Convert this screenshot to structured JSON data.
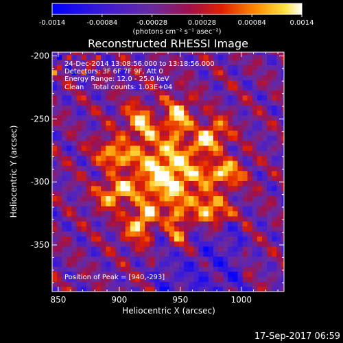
{
  "chart_data": {
    "type": "heatmap",
    "title": "Reconstructed RHESSI Image",
    "xlabel": "Heliocentric X (arcsec)",
    "ylabel": "Heliocentric Y (arcsec)",
    "xlim": [
      845,
      1035
    ],
    "ylim": [
      -387,
      -197
    ],
    "x_ticks": [
      850,
      900,
      950,
      1000
    ],
    "x_tick_labels": [
      "850",
      "900",
      "950",
      "1000"
    ],
    "y_ticks": [
      -200,
      -250,
      -300,
      -350
    ],
    "y_tick_labels": [
      "-200",
      "-250",
      "-300",
      "-350"
    ],
    "colorbar": {
      "min": -0.0014,
      "max": 0.0014,
      "ticks": [
        -0.0014,
        -0.00084,
        -0.00028,
        0.00028,
        0.00084,
        0.0014
      ],
      "tick_labels": [
        "-0.0014",
        "-0.00084",
        "-0.00028",
        "0.00028",
        "0.00084",
        "0.0014"
      ],
      "label": "(photons cm⁻² s⁻¹ asec⁻²)",
      "colormap": "blue-purple-red-yellow-white"
    },
    "annotations": [
      "24-Dec-2014 13:08:56.000 to 13:18:56.000",
      "Detectors: 3F 6F 7F 9F, Att 0",
      "Energy Range: 12.0 - 25.0 keV",
      "Clean    Total counts: 1.03E+04"
    ],
    "peak": {
      "x": 940,
      "y": -293,
      "label": "Position of Peak = [940,-293]"
    },
    "source": {
      "x": 940,
      "y": -293,
      "peak_value": 0.0014
    },
    "limb": {
      "type": "solar-limb-arc",
      "color": "#ffffff"
    },
    "grid": false
  },
  "footer": {
    "timestamp": "17-Sep-2017 06:59"
  }
}
